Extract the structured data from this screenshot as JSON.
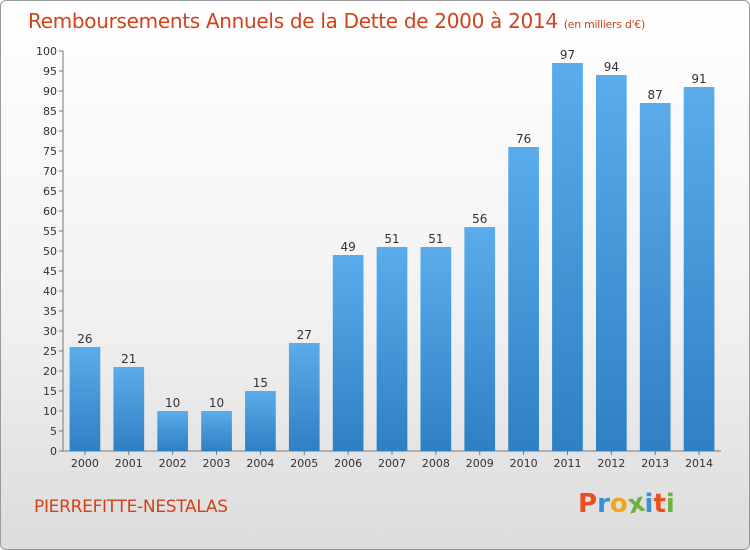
{
  "header": {
    "title": "Remboursements Annuels de la Dette de 2000 à 2014",
    "unit": "(en milliers d'€)"
  },
  "footer": {
    "town": "PIERREFITTE-NESTALAS",
    "logo_letters": [
      "P",
      "r",
      "o",
      "x",
      "i",
      "t",
      "i"
    ],
    "logo_colors": [
      "#e8501f",
      "#3b8fd6",
      "#f3a41d",
      "#6cb33f",
      "#3b8fd6",
      "#e8501f",
      "#6cb33f"
    ]
  },
  "chart_data": {
    "type": "bar",
    "title": "Remboursements Annuels de la Dette de 2000 à 2014",
    "unit": "(en milliers d'€)",
    "categories": [
      "2000",
      "2001",
      "2002",
      "2003",
      "2004",
      "2005",
      "2006",
      "2007",
      "2008",
      "2009",
      "2010",
      "2011",
      "2012",
      "2013",
      "2014"
    ],
    "values": [
      26,
      21,
      10,
      10,
      15,
      27,
      49,
      51,
      51,
      56,
      76,
      97,
      94,
      87,
      91
    ],
    "ylim": [
      0,
      100
    ],
    "ytick_step": 5,
    "grid": false,
    "bar_color": "#4f9fdf"
  }
}
